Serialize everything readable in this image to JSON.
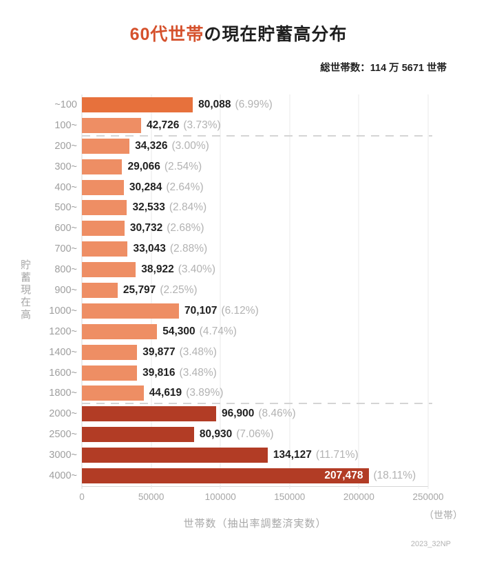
{
  "title": {
    "highlight": "60代世帯",
    "rest": "の現在貯蓄高分布",
    "highlight_color": "#d5512c"
  },
  "subtitle": "総世帯数：114 万 5671 世帯",
  "footnote": "2023_32NP",
  "colors": {
    "title_highlight": "#d5512c",
    "text_dark": "#1f1f1f",
    "category_label_gray": "#9e9e9e",
    "percent_gray": "#b2b2b2",
    "grid": "#e8e8e8",
    "axis": "#d8d8d8",
    "separator_dash": "#d4d4d4",
    "bar_first": "#e7713c",
    "bar_light": "#ee8e64",
    "bar_dark": "#b23c25",
    "inside_value_label": "#ffffff"
  },
  "chart_data": {
    "type": "bar",
    "orientation": "horizontal",
    "title": "60代世帯の現在貯蓄高分布",
    "subtitle": "総世帯数：114 万 5671 世帯",
    "xlabel": "世帯数（抽出率調整済実数）",
    "x_unit_label": "（世帯）",
    "ylabel": "貯蓄現在高",
    "xlim": [
      0,
      250000
    ],
    "xticks": [
      0,
      50000,
      100000,
      150000,
      200000,
      250000
    ],
    "grid": true,
    "legend": false,
    "separator_after_indices": [
      1,
      14
    ],
    "bars": [
      {
        "category": "~100",
        "value": 80088,
        "value_label": "80,088",
        "pct_label": "(6.99%)",
        "color": "#e7713c",
        "value_inside": false
      },
      {
        "category": "100~",
        "value": 42726,
        "value_label": "42,726",
        "pct_label": "(3.73%)",
        "color": "#ee8e64",
        "value_inside": false
      },
      {
        "category": "200~",
        "value": 34326,
        "value_label": "34,326",
        "pct_label": "(3.00%)",
        "color": "#ee8e64",
        "value_inside": false
      },
      {
        "category": "300~",
        "value": 29066,
        "value_label": "29,066",
        "pct_label": "(2.54%)",
        "color": "#ee8e64",
        "value_inside": false
      },
      {
        "category": "400~",
        "value": 30284,
        "value_label": "30,284",
        "pct_label": "(2.64%)",
        "color": "#ee8e64",
        "value_inside": false
      },
      {
        "category": "500~",
        "value": 32533,
        "value_label": "32,533",
        "pct_label": "(2.84%)",
        "color": "#ee8e64",
        "value_inside": false
      },
      {
        "category": "600~",
        "value": 30732,
        "value_label": "30,732",
        "pct_label": "(2.68%)",
        "color": "#ee8e64",
        "value_inside": false
      },
      {
        "category": "700~",
        "value": 33043,
        "value_label": "33,043",
        "pct_label": "(2.88%)",
        "color": "#ee8e64",
        "value_inside": false
      },
      {
        "category": "800~",
        "value": 38922,
        "value_label": "38,922",
        "pct_label": "(3.40%)",
        "color": "#ee8e64",
        "value_inside": false
      },
      {
        "category": "900~",
        "value": 25797,
        "value_label": "25,797",
        "pct_label": "(2.25%)",
        "color": "#ee8e64",
        "value_inside": false
      },
      {
        "category": "1000~",
        "value": 70107,
        "value_label": "70,107",
        "pct_label": "(6.12%)",
        "color": "#ee8e64",
        "value_inside": false
      },
      {
        "category": "1200~",
        "value": 54300,
        "value_label": "54,300",
        "pct_label": "(4.74%)",
        "color": "#ee8e64",
        "value_inside": false
      },
      {
        "category": "1400~",
        "value": 39877,
        "value_label": "39,877",
        "pct_label": "(3.48%)",
        "color": "#ee8e64",
        "value_inside": false
      },
      {
        "category": "1600~",
        "value": 39816,
        "value_label": "39,816",
        "pct_label": "(3.48%)",
        "color": "#ee8e64",
        "value_inside": false
      },
      {
        "category": "1800~",
        "value": 44619,
        "value_label": "44,619",
        "pct_label": "(3.89%)",
        "color": "#ee8e64",
        "value_inside": false
      },
      {
        "category": "2000~",
        "value": 96900,
        "value_label": "96,900",
        "pct_label": "(8.46%)",
        "color": "#b23c25",
        "value_inside": false
      },
      {
        "category": "2500~",
        "value": 80930,
        "value_label": "80,930",
        "pct_label": "(7.06%)",
        "color": "#b23c25",
        "value_inside": false
      },
      {
        "category": "3000~",
        "value": 134127,
        "value_label": "134,127",
        "pct_label": "(11.71%)",
        "color": "#b23c25",
        "value_inside": false
      },
      {
        "category": "4000~",
        "value": 207478,
        "value_label": "207,478",
        "pct_label": "(18.11%)",
        "color": "#b23c25",
        "value_inside": true
      }
    ]
  }
}
